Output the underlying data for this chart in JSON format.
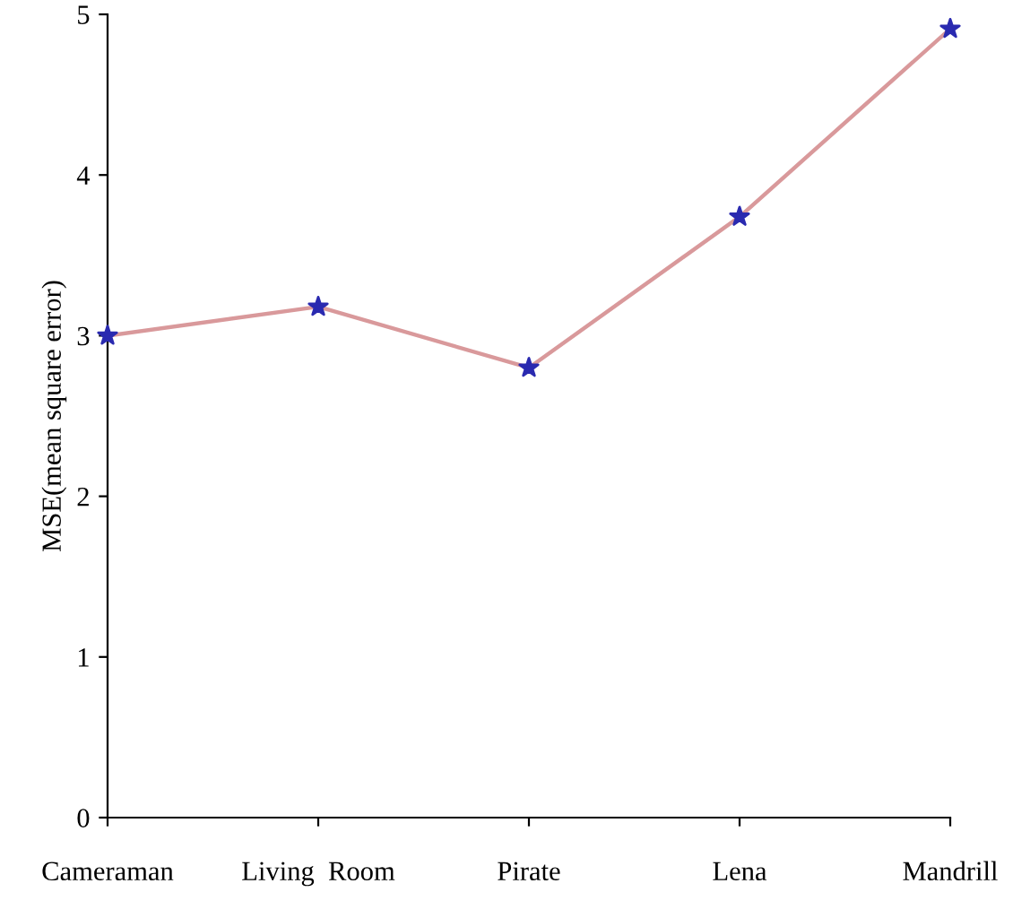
{
  "chart_data": {
    "type": "line",
    "ylabel": "MSE(mean square error)",
    "categories": [
      "Cameraman",
      "Living  Room",
      "Pirate",
      "Lena",
      "Mandrill"
    ],
    "series": [
      {
        "color": "#d9999b",
        "colors": [
          "#2a2ab0",
          "#2a2ab0",
          "#2a2ab0",
          "#2a2ab0",
          "#2a2ab0"
        ],
        "values": [
          3.0,
          3.18,
          2.8,
          3.74,
          4.91
        ]
      }
    ],
    "marker": "star",
    "ylim": [
      0,
      5
    ],
    "yticks": [
      0,
      1,
      2,
      3,
      4,
      5
    ],
    "grid": false,
    "legend": false
  }
}
